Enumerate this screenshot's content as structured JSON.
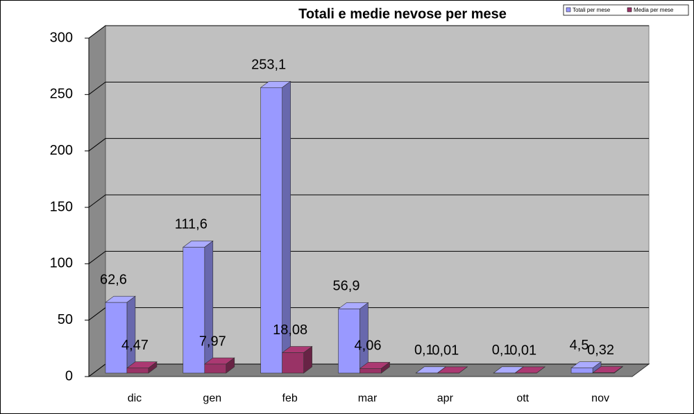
{
  "chart_data": {
    "type": "bar3d",
    "title": "Totali e medie nevose per mese",
    "categories": [
      "dic",
      "gen",
      "feb",
      "mar",
      "apr",
      "ott",
      "nov"
    ],
    "series": [
      {
        "name": "Totali per mese",
        "color": "#9999ff",
        "values": [
          62.6,
          111.6,
          253.1,
          56.9,
          0.1,
          0.1,
          4.5
        ],
        "value_labels": [
          "62,6",
          "111,6",
          "253,1",
          "56,9",
          "0,1",
          "0,1",
          "4,5"
        ]
      },
      {
        "name": "Media per mese",
        "color": "#993366",
        "values": [
          4.47,
          7.97,
          18.08,
          4.06,
          0.01,
          0.01,
          0.32
        ],
        "value_labels": [
          "4,47",
          "7,97",
          "18,08",
          "4,06",
          "0,01",
          "0,01",
          "0,32"
        ]
      }
    ],
    "ylim": [
      0,
      300
    ],
    "yticks": [
      0,
      50,
      100,
      150,
      200,
      250,
      300
    ],
    "grid": true,
    "legend": "top-right"
  }
}
